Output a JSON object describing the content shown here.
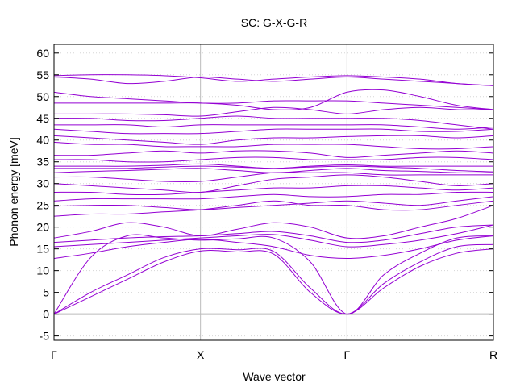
{
  "chart_data": {
    "type": "line",
    "title": "SC: G-X-G-R",
    "xlabel": "Wave vector",
    "ylabel": "Phonon energy [meV]",
    "ylim": [
      -6,
      62
    ],
    "yticks": [
      -5,
      0,
      5,
      10,
      15,
      20,
      25,
      30,
      35,
      40,
      45,
      50,
      55,
      60
    ],
    "xlim": [
      0,
      3
    ],
    "xticks": [
      {
        "pos": 0,
        "label": "Γ"
      },
      {
        "pos": 1,
        "label": "X"
      },
      {
        "pos": 2,
        "label": "Γ"
      },
      {
        "pos": 3,
        "label": "R"
      }
    ],
    "x": [
      0,
      0.25,
      0.5,
      0.75,
      1,
      1.25,
      1.5,
      1.75,
      2,
      2.25,
      2.5,
      2.75,
      3
    ],
    "grid": true,
    "line_color": "#9400d3",
    "zero_line_color": "#bbbbbb",
    "series": [
      {
        "values": [
          0,
          4,
          8,
          12,
          14.5,
          14.3,
          13.8,
          5,
          0,
          6,
          11,
          14,
          15
        ]
      },
      {
        "values": [
          0,
          5,
          9,
          13,
          15,
          14.8,
          14.4,
          6,
          0,
          7,
          12,
          15.5,
          16
        ]
      },
      {
        "values": [
          0,
          13,
          18,
          17.5,
          17,
          17.3,
          17.5,
          12,
          0,
          9,
          14,
          17.5,
          18
        ]
      },
      {
        "values": [
          12.8,
          14,
          15.5,
          16.5,
          17.2,
          16.5,
          15.5,
          13.5,
          12.8,
          13.5,
          15,
          17,
          18
        ]
      },
      {
        "values": [
          15.5,
          16,
          16.5,
          17,
          17.5,
          18,
          18.3,
          17,
          15.5,
          16,
          17,
          18.5,
          20.5
        ]
      },
      {
        "values": [
          16.5,
          17,
          17.5,
          17.8,
          18,
          18.5,
          19,
          18,
          16.5,
          17,
          18.5,
          20,
          20.5
        ]
      },
      {
        "values": [
          17.5,
          19,
          21,
          20,
          18,
          19.5,
          21,
          20,
          17.5,
          18,
          20,
          22,
          25
        ]
      },
      {
        "values": [
          22.5,
          23,
          23,
          23.5,
          24,
          25,
          26,
          25,
          25,
          24,
          24,
          25,
          26
        ]
      },
      {
        "values": [
          24.8,
          25,
          25,
          24.5,
          24,
          24.5,
          25,
          25.5,
          26,
          25.5,
          25,
          26,
          27
        ]
      },
      {
        "values": [
          26,
          26.5,
          26.5,
          26.5,
          26.5,
          27,
          27.5,
          27,
          27,
          27.5,
          27.5,
          28,
          28
        ]
      },
      {
        "values": [
          28,
          28,
          27.5,
          27.5,
          28,
          28.5,
          29,
          29,
          29.5,
          29.5,
          29,
          28.5,
          29
        ]
      },
      {
        "values": [
          30,
          29.5,
          29,
          28.5,
          28,
          29.5,
          31,
          31.5,
          32,
          31.5,
          30.5,
          29.5,
          30
        ]
      },
      {
        "values": [
          31.5,
          31.5,
          31,
          30.5,
          30.5,
          31.5,
          32.5,
          32.5,
          32.5,
          32,
          32,
          32,
          32
        ]
      },
      {
        "values": [
          32.5,
          32.8,
          33,
          33.3,
          33.5,
          33,
          32.5,
          33,
          33.5,
          33,
          32.8,
          32.5,
          32.5
        ]
      },
      {
        "values": [
          33.5,
          33.5,
          33.5,
          33.8,
          34,
          33.8,
          33.5,
          33.8,
          34,
          33.8,
          33.5,
          33,
          32.7
        ]
      },
      {
        "values": [
          34,
          34,
          34,
          34.2,
          34.5,
          34,
          33.5,
          34,
          34.3,
          34,
          34,
          34,
          34
        ]
      },
      {
        "values": [
          35.5,
          35.5,
          35,
          35,
          35.5,
          36,
          36,
          35.5,
          35.5,
          35.5,
          36,
          36,
          35.5
        ]
      },
      {
        "values": [
          36.5,
          36.5,
          37,
          37.5,
          37,
          37.5,
          37.5,
          37,
          36,
          36.5,
          37,
          37.5,
          37
        ]
      },
      {
        "values": [
          39.5,
          39,
          39,
          38.5,
          38.5,
          38.5,
          39,
          39,
          39,
          38.5,
          38,
          38,
          38.5
        ]
      },
      {
        "values": [
          41,
          40.5,
          40,
          39.5,
          39,
          40,
          40.5,
          40.5,
          40.8,
          41,
          41,
          40.5,
          41
        ]
      },
      {
        "values": [
          42.5,
          42,
          41.5,
          41.5,
          41.5,
          42,
          42.5,
          42.5,
          42.5,
          42.5,
          42,
          42,
          42.5
        ]
      },
      {
        "values": [
          43.5,
          43.5,
          43.5,
          43,
          43.5,
          43.5,
          43.5,
          43.5,
          43.5,
          43.5,
          43,
          42.5,
          43
        ]
      },
      {
        "values": [
          45,
          45,
          44.5,
          44.5,
          45,
          45.5,
          45,
          45,
          45,
          45,
          44.5,
          43.5,
          42.5
        ]
      },
      {
        "values": [
          46,
          46,
          46,
          45.8,
          45.5,
          46.5,
          47.5,
          47,
          46,
          47,
          47.5,
          47,
          47
        ]
      },
      {
        "values": [
          48.5,
          48.5,
          48.5,
          48.5,
          48.5,
          48,
          47,
          47.5,
          51,
          51.5,
          50,
          48,
          47
        ]
      },
      {
        "values": [
          51,
          50,
          49.5,
          49,
          48.5,
          48.5,
          49,
          49,
          49,
          48.5,
          48,
          47.5,
          47
        ]
      },
      {
        "values": [
          54.5,
          54,
          53,
          53.5,
          54.5,
          54,
          53.5,
          54,
          54.5,
          54,
          53.5,
          53,
          52.5
        ]
      },
      {
        "values": [
          54.8,
          55,
          55,
          54.8,
          54.3,
          53.5,
          54,
          54.5,
          54.8,
          54.5,
          54,
          53,
          52.5
        ]
      }
    ]
  }
}
